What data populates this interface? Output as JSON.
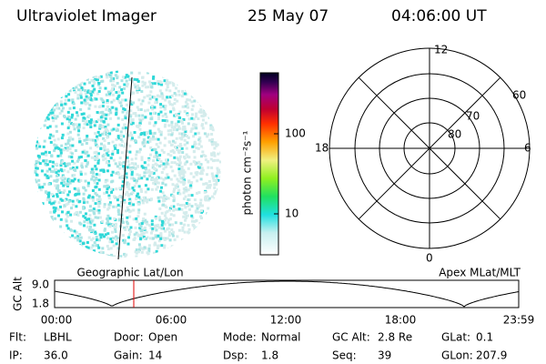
{
  "header": {
    "instrument": "Ultraviolet Imager",
    "date": "25 May 07",
    "time": "04:06:00 UT"
  },
  "colorbar": {
    "label": "photon cm⁻²s⁻¹",
    "ticks": [
      "100",
      "10"
    ]
  },
  "polar": {
    "hours": [
      "12",
      "18",
      "6",
      "0"
    ],
    "latitudes": [
      "60",
      "70",
      "80"
    ]
  },
  "timeline": {
    "left_title": "Geographic Lat/Lon",
    "right_title": "Apex MLat/MLT",
    "ylabel": "GC Alt",
    "yticks": [
      "9.0",
      "1.8"
    ],
    "xticks": [
      "00:00",
      "06:00",
      "12:00",
      "18:00",
      "23:59"
    ]
  },
  "status": [
    [
      {
        "label": "Flt:",
        "value": "LBHL"
      },
      {
        "label": "Door:",
        "value": "Open"
      },
      {
        "label": "Mode:",
        "value": "Normal"
      },
      {
        "label": "GC Alt:",
        "value": "2.8 Re"
      },
      {
        "label": "GLat:",
        "value": "0.1"
      }
    ],
    [
      {
        "label": "IP:",
        "value": "36.0"
      },
      {
        "label": "Gain:",
        "value": "14"
      },
      {
        "label": "Dsp:",
        "value": "1.8"
      },
      {
        "label": "Seq:",
        "value": "39"
      },
      {
        "label": "GLon:",
        "value": "207.9"
      }
    ]
  ]
}
